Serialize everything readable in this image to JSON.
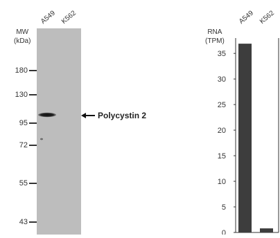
{
  "western_blot": {
    "mw_label": "MW",
    "mw_unit": "(kDa)",
    "lanes": [
      "A549",
      "K562"
    ],
    "markers": [
      {
        "label": "180",
        "kda": 180
      },
      {
        "label": "130",
        "kda": 130
      },
      {
        "label": "95",
        "kda": 95
      },
      {
        "label": "72",
        "kda": 72
      },
      {
        "label": "55",
        "kda": 55
      },
      {
        "label": "43",
        "kda": 43
      }
    ],
    "band_label": "Polycystin 2",
    "band_lane": "A549"
  },
  "chart_data": {
    "type": "bar",
    "categories": [
      "A549",
      "K562"
    ],
    "values": [
      36.9,
      0.8
    ],
    "title": "",
    "xlabel": "",
    "ylabel": "RNA",
    "ylabel_unit": "(TPM)",
    "ylim": [
      0,
      38
    ],
    "yticks": [
      0,
      5,
      10,
      15,
      20,
      25,
      30,
      35
    ],
    "bar_color": "#3d3d3d",
    "grid": false,
    "legend": "none"
  }
}
